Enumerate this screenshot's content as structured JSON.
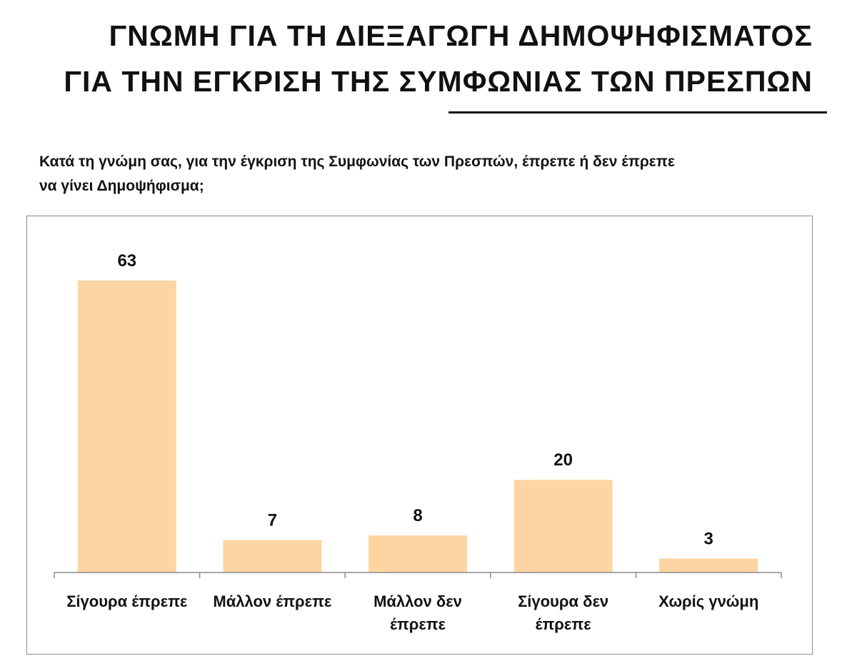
{
  "header": {
    "title_line1": "ΓΝΩΜΗ ΓΙΑ ΤΗ ΔΙΕΞΑΓΩΓΗ ΔΗΜΟΨΗΦΙΣΜΑΤΟΣ",
    "title_line2": "ΓΙΑ ΤΗΝ ΕΓΚΡΙΣΗ ΤΗΣ ΣΥΜΦΩΝΙΑΣ ΤΩΝ ΠΡΕΣΠΩΝ",
    "question_line1": "Κατά τη γνώμη σας, για την έγκριση της Συμφωνίας των Πρεσπών, έπρεπε ή δεν έπρεπε",
    "question_line2": "να γίνει Δημοψήφισμα;"
  },
  "chart_data": {
    "type": "bar",
    "categories": [
      [
        "Σίγουρα έπρεπε"
      ],
      [
        "Μάλλον έπρεπε"
      ],
      [
        "Μάλλον δεν",
        "έπρεπε"
      ],
      [
        "Σίγουρα δεν",
        "έπρεπε"
      ],
      [
        "Χωρίς γνώμη"
      ]
    ],
    "values": [
      63,
      7,
      8,
      20,
      3
    ],
    "ylim": [
      0,
      63
    ],
    "grid": false,
    "bar_color": "#FDD5A2",
    "axis_color": "#8c8c8c"
  }
}
